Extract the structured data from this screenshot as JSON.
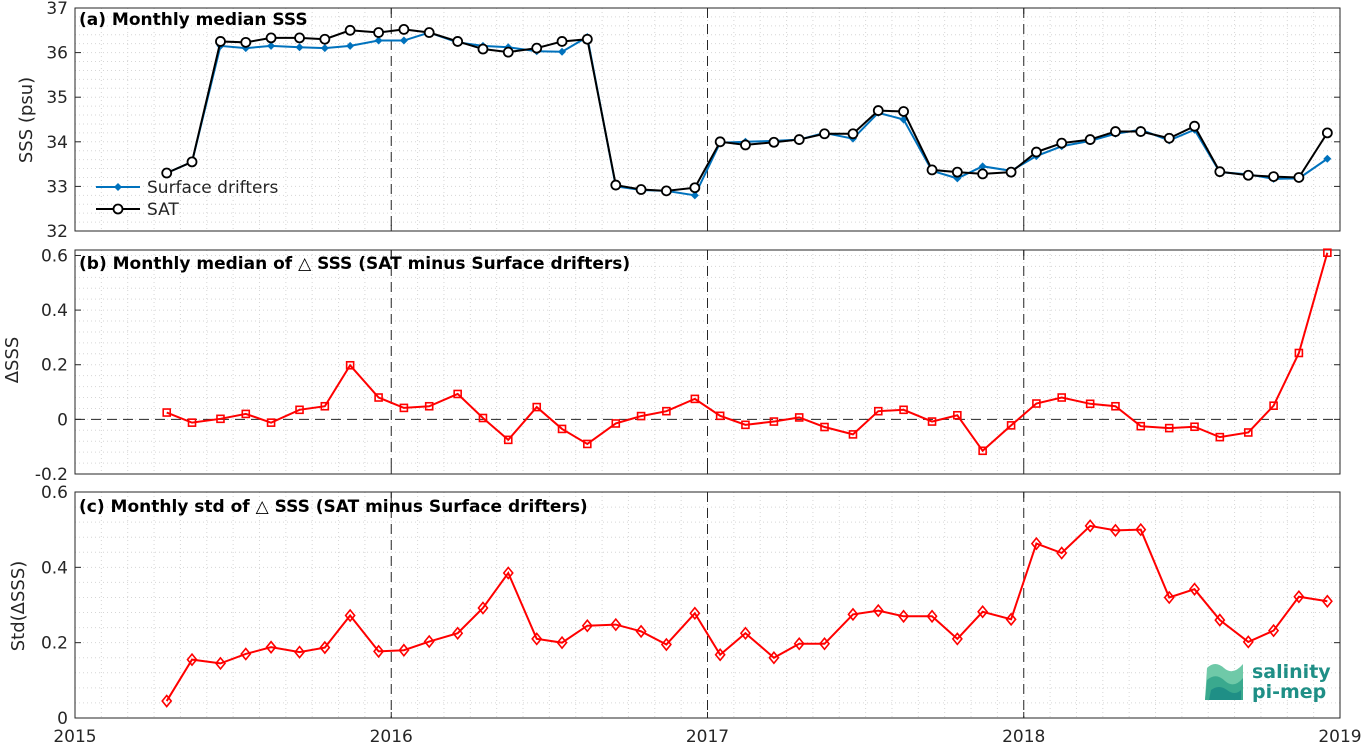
{
  "chart_data": [
    {
      "type": "line",
      "title": "(a) Monthly median SSS",
      "ylabel": "SSS (psu)",
      "ylim": [
        32,
        37
      ],
      "yticks": [
        "32",
        "33",
        "34",
        "35",
        "36",
        "37"
      ],
      "xlim": [
        2015,
        2019
      ],
      "xticks": [
        "2015",
        "2016",
        "2017",
        "2018",
        "2019"
      ],
      "grid": true,
      "legend_position": "bottom-left",
      "x": [
        2015.29,
        2015.37,
        2015.46,
        2015.54,
        2015.62,
        2015.71,
        2015.79,
        2015.87,
        2015.96,
        2016.04,
        2016.12,
        2016.21,
        2016.29,
        2016.37,
        2016.46,
        2016.54,
        2016.62,
        2016.71,
        2016.79,
        2016.87,
        2016.96,
        2017.04,
        2017.12,
        2017.21,
        2017.29,
        2017.37,
        2017.46,
        2017.54,
        2017.62,
        2017.71,
        2017.79,
        2017.87,
        2017.96,
        2018.04,
        2018.12,
        2018.21,
        2018.29,
        2018.37,
        2018.46,
        2018.54,
        2018.62,
        2018.71,
        2018.79,
        2018.87,
        2018.96
      ],
      "series": [
        {
          "name": "Surface drifters",
          "color": "#0072BD",
          "marker": "diamond",
          "values": [
            33.3,
            33.55,
            36.15,
            36.1,
            36.15,
            36.12,
            36.1,
            36.15,
            36.27,
            36.27,
            36.45,
            36.23,
            36.15,
            36.12,
            36.03,
            36.02,
            36.35,
            33.0,
            32.92,
            32.9,
            32.8,
            33.98,
            34.0,
            34.02,
            34.05,
            34.2,
            34.07,
            34.65,
            34.5,
            33.35,
            33.18,
            33.45,
            33.35,
            33.68,
            33.9,
            34.02,
            34.18,
            34.27,
            34.03,
            34.27,
            33.32,
            33.27,
            33.17,
            33.18,
            33.62
          ]
        },
        {
          "name": "SAT",
          "color": "#000000",
          "marker": "circle",
          "values": [
            33.3,
            33.55,
            36.25,
            36.23,
            36.33,
            36.33,
            36.3,
            36.5,
            36.45,
            36.52,
            36.45,
            36.25,
            36.08,
            36.01,
            36.1,
            36.25,
            36.3,
            33.03,
            32.93,
            32.9,
            32.97,
            34.0,
            33.93,
            33.99,
            34.05,
            34.18,
            34.18,
            34.7,
            34.68,
            33.37,
            33.32,
            33.28,
            33.32,
            33.77,
            33.97,
            34.05,
            34.23,
            34.23,
            34.08,
            34.35,
            33.33,
            33.25,
            33.22,
            33.2,
            34.2
          ]
        }
      ]
    },
    {
      "type": "line",
      "title": "(b) Monthly median of △ SSS (SAT minus Surface drifters)",
      "ylabel": "ΔSSS",
      "ylim": [
        -0.2,
        0.62
      ],
      "yticks": [
        "-0.2",
        "0",
        "0.2",
        "0.4",
        "0.6"
      ],
      "xlim": [
        2015,
        2019
      ],
      "grid": true,
      "zero_line": true,
      "x": [
        2015.29,
        2015.37,
        2015.46,
        2015.54,
        2015.62,
        2015.71,
        2015.79,
        2015.87,
        2015.96,
        2016.04,
        2016.12,
        2016.21,
        2016.29,
        2016.37,
        2016.46,
        2016.54,
        2016.62,
        2016.71,
        2016.79,
        2016.87,
        2016.96,
        2017.04,
        2017.12,
        2017.21,
        2017.29,
        2017.37,
        2017.46,
        2017.54,
        2017.62,
        2017.71,
        2017.79,
        2017.87,
        2017.96,
        2018.04,
        2018.12,
        2018.21,
        2018.29,
        2018.37,
        2018.46,
        2018.54,
        2018.62,
        2018.71,
        2018.79,
        2018.87,
        2018.96
      ],
      "series": [
        {
          "color": "#FF0000",
          "marker": "square",
          "values": [
            0.025,
            -0.012,
            0.002,
            0.02,
            -0.012,
            0.035,
            0.048,
            0.198,
            0.08,
            0.042,
            0.048,
            0.093,
            0.005,
            -0.075,
            0.045,
            -0.035,
            -0.09,
            -0.015,
            0.012,
            0.03,
            0.075,
            0.013,
            -0.02,
            -0.008,
            0.007,
            -0.028,
            -0.055,
            0.03,
            0.035,
            -0.008,
            0.015,
            -0.115,
            -0.022,
            0.058,
            0.08,
            0.057,
            0.048,
            -0.025,
            -0.032,
            -0.027,
            -0.065,
            -0.048,
            0.05,
            0.243,
            0.61
          ]
        }
      ]
    },
    {
      "type": "line",
      "title": "(c) Monthly std of △ SSS (SAT minus Surface drifters)",
      "ylabel": "Std(ΔSSS)",
      "ylim": [
        0,
        0.6
      ],
      "yticks": [
        "0",
        "0.2",
        "0.4",
        "0.6"
      ],
      "xlim": [
        2015,
        2019
      ],
      "xticks": [
        "2015",
        "2016",
        "2017",
        "2018",
        "2019"
      ],
      "grid": true,
      "x": [
        2015.29,
        2015.37,
        2015.46,
        2015.54,
        2015.62,
        2015.71,
        2015.79,
        2015.87,
        2015.96,
        2016.04,
        2016.12,
        2016.21,
        2016.29,
        2016.37,
        2016.46,
        2016.54,
        2016.62,
        2016.71,
        2016.79,
        2016.87,
        2016.96,
        2017.04,
        2017.12,
        2017.21,
        2017.29,
        2017.37,
        2017.46,
        2017.54,
        2017.62,
        2017.71,
        2017.79,
        2017.87,
        2017.96,
        2018.04,
        2018.12,
        2018.21,
        2018.29,
        2018.37,
        2018.46,
        2018.54,
        2018.62,
        2018.71,
        2018.79,
        2018.87,
        2018.96
      ],
      "series": [
        {
          "color": "#FF0000",
          "marker": "diamond",
          "values": [
            0.045,
            0.155,
            0.145,
            0.17,
            0.188,
            0.175,
            0.187,
            0.272,
            0.177,
            0.18,
            0.203,
            0.225,
            0.292,
            0.385,
            0.21,
            0.2,
            0.245,
            0.248,
            0.23,
            0.195,
            0.278,
            0.168,
            0.225,
            0.16,
            0.197,
            0.197,
            0.275,
            0.285,
            0.27,
            0.27,
            0.21,
            0.282,
            0.262,
            0.463,
            0.438,
            0.51,
            0.498,
            0.5,
            0.32,
            0.342,
            0.26,
            0.202,
            0.232,
            0.322,
            0.31
          ]
        }
      ]
    }
  ],
  "logo": {
    "line1": "salinity",
    "line2": "pi-mep",
    "accent": "#1f8f86"
  }
}
